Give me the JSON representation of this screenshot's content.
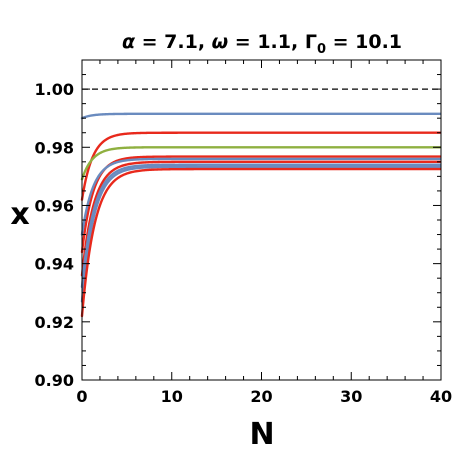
{
  "chart_data": {
    "type": "line",
    "title": {
      "alpha_symbol": "α",
      "alpha_value": " = 7.1, ",
      "omega_symbol": "ω",
      "omega_value": " = 1.1, ",
      "gamma_symbol": "Γ",
      "gamma_subscript": "0",
      "gamma_value": " = 10.1"
    },
    "xlabel": "N",
    "ylabel": "x",
    "xlim": [
      0,
      40
    ],
    "ylim": [
      0.9,
      1.01
    ],
    "x_ticks": [
      0,
      10,
      20,
      30,
      40
    ],
    "x_tick_labels": [
      "0",
      "10",
      "20",
      "30",
      "40"
    ],
    "y_ticks": [
      0.9,
      0.92,
      0.94,
      0.96,
      0.98,
      1.0
    ],
    "y_tick_labels": [
      "0.90",
      "0.92",
      "0.94",
      "0.96",
      "0.98",
      "1.00"
    ],
    "grid": false,
    "reference_line": {
      "y": 1.0,
      "style": "dashed",
      "color": "#000000"
    },
    "series": [
      {
        "color": "#6a8bbf",
        "y0": 0.99,
        "asymptote": 0.9915,
        "rate": 0.9
      },
      {
        "color": "#e8291c",
        "y0": 0.962,
        "asymptote": 0.985,
        "rate": 0.85
      },
      {
        "color": "#8fb040",
        "y0": 0.969,
        "asymptote": 0.98,
        "rate": 0.85
      },
      {
        "color": "#e8291c",
        "y0": 0.944,
        "asymptote": 0.9768,
        "rate": 0.8
      },
      {
        "color": "#6a8bbf",
        "y0": 0.95,
        "asymptote": 0.976,
        "rate": 0.8
      },
      {
        "color": "#e8291c",
        "y0": 0.936,
        "asymptote": 0.975,
        "rate": 0.75
      },
      {
        "color": "#6a8bbf",
        "y0": 0.932,
        "asymptote": 0.974,
        "rate": 0.75
      },
      {
        "color": "#6a8bbf",
        "y0": 0.927,
        "asymptote": 0.9733,
        "rate": 0.75
      },
      {
        "color": "#e8291c",
        "y0": 0.922,
        "asymptote": 0.9725,
        "rate": 0.7
      }
    ]
  }
}
